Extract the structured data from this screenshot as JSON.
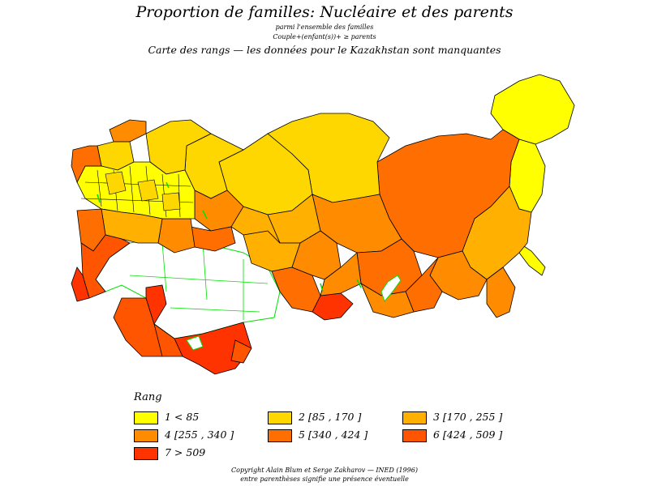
{
  "title": "Proportion de familles: Nucléaire et des parents",
  "subtitle_1": "parmi l'ensemble des familles",
  "subtitle_2": "Couple+(enfant(s))+ ≥ parents",
  "subtitle_3": "Carte des rangs — les données pour le Kazakhstan sont manquantes",
  "legend": {
    "title": "Rang",
    "items": [
      {
        "label": "1  <  85",
        "color": "#ffff00"
      },
      {
        "label": "2 [85 ,  170 ]",
        "color": "#ffd700"
      },
      {
        "label": "3 [170 ,  255 ]",
        "color": "#ffb000"
      },
      {
        "label": "4 [255 ,  340 ]",
        "color": "#ff8c00"
      },
      {
        "label": "5 [340 ,  424 ]",
        "color": "#ff6e00"
      },
      {
        "label": "6 [424 ,  509 ]",
        "color": "#ff5500"
      },
      {
        "label": "7  >  509",
        "color": "#ff3300"
      }
    ]
  },
  "footer_1": "Copyright Alain Blum et Serge Zakharov — INED (1996)",
  "footer_2": "entre parenthèses signifie une présence éventuelle",
  "colors": {
    "no_data_fill": "#ffffff",
    "border": "#000000",
    "lake_outline": "#00e000"
  }
}
